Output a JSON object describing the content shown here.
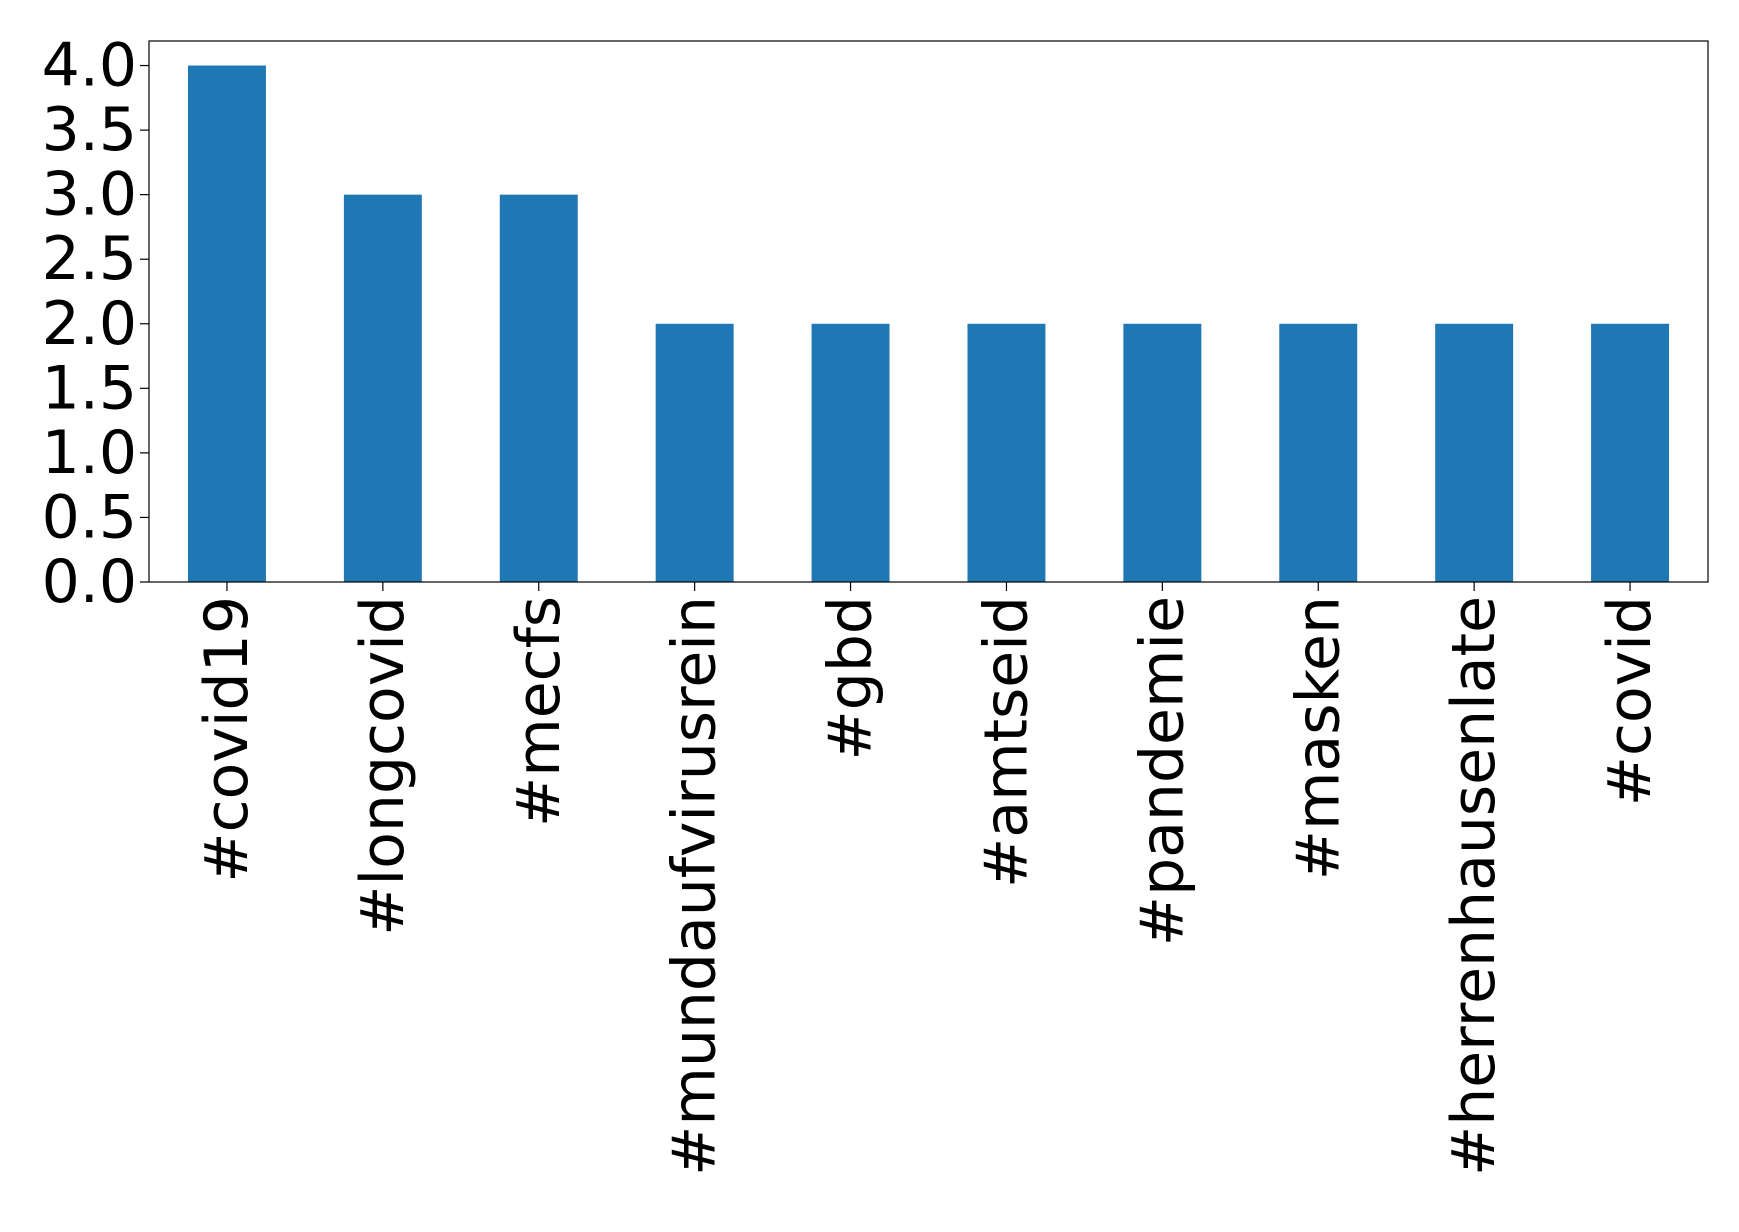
{
  "chart_data": {
    "type": "bar",
    "categories": [
      "#covid19",
      "#longcovid",
      "#mecfs",
      "#mundaufvirusrein",
      "#gbd",
      "#amtseid",
      "#pandemie",
      "#masken",
      "#herrenhausenlate",
      "#covid"
    ],
    "values": [
      4,
      3,
      3,
      2,
      2,
      2,
      2,
      2,
      2,
      2
    ],
    "color": "#1f77b4",
    "ylim": [
      0,
      4.19
    ],
    "yticks": [
      {
        "value": 0,
        "label": "0.0"
      },
      {
        "value": 0.5,
        "label": "0.5"
      },
      {
        "value": 1,
        "label": "1.0"
      },
      {
        "value": 1.5,
        "label": "1.5"
      },
      {
        "value": 2,
        "label": "2.0"
      },
      {
        "value": 2.5,
        "label": "2.5"
      },
      {
        "value": 3,
        "label": "3.0"
      },
      {
        "value": 3.5,
        "label": "3.5"
      },
      {
        "value": 4,
        "label": "4.0"
      }
    ],
    "grid": false
  }
}
